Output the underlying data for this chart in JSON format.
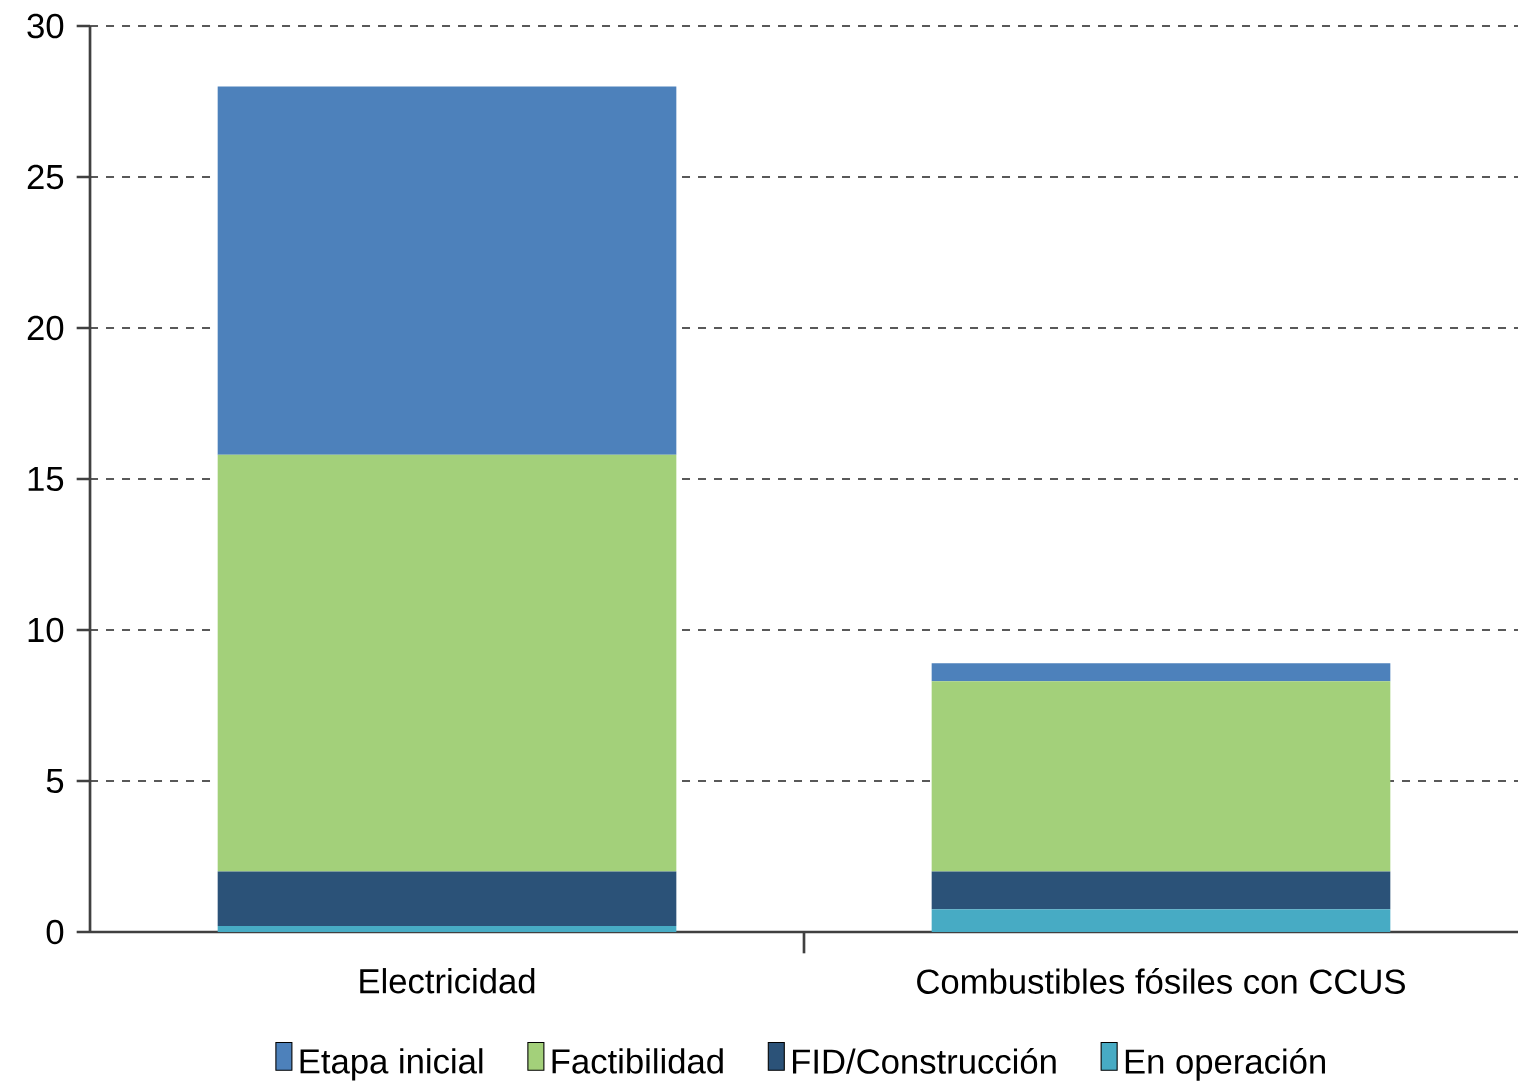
{
  "chart_data": {
    "type": "bar",
    "stacked": true,
    "categories": [
      "Electricidad",
      "Combustibles fósiles con CCUS"
    ],
    "series": [
      {
        "name": "En operación",
        "color": "#47abc4",
        "values": [
          0.2,
          0.75
        ]
      },
      {
        "name": "FID/Construcción",
        "color": "#2b5278",
        "values": [
          1.8,
          1.25
        ]
      },
      {
        "name": "Factibilidad",
        "color": "#a3d07a",
        "values": [
          13.8,
          6.3
        ]
      },
      {
        "name": "Etapa inicial",
        "color": "#4d81bb",
        "values": [
          12.2,
          0.6
        ]
      }
    ],
    "ylim": [
      0,
      30
    ],
    "yticks": [
      0,
      5,
      10,
      15,
      20,
      25,
      30
    ],
    "grid": "y",
    "legend": "bottom"
  }
}
